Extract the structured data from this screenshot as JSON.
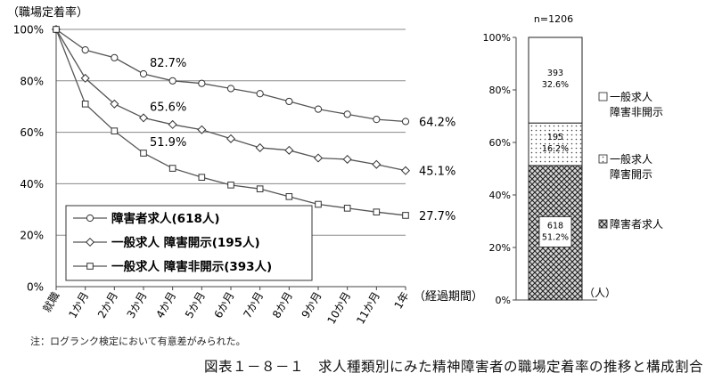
{
  "chart_data": [
    {
      "type": "line",
      "ylabel": "（職場定着率）",
      "xlabel": "（経過期間）",
      "categories": [
        "就職",
        "1か月",
        "2か月",
        "3か月",
        "4か月",
        "5か月",
        "6か月",
        "7か月",
        "8か月",
        "9か月",
        "10か月",
        "11か月",
        "1年"
      ],
      "ylim": [
        0,
        100
      ],
      "yticks": [
        "0%",
        "20%",
        "40%",
        "60%",
        "80%",
        "100%"
      ],
      "grid": true,
      "legend_position": "bottom-left",
      "series": [
        {
          "name": "障害者求人(618人)",
          "marker": "circle",
          "values": [
            100,
            92,
            89,
            82.7,
            80,
            79,
            77,
            75,
            72,
            69,
            67,
            65,
            64.2
          ]
        },
        {
          "name": "一般求人 障害開示(195人)",
          "marker": "diamond",
          "values": [
            100,
            81,
            71,
            65.6,
            63,
            61,
            57.5,
            54,
            53,
            50,
            49.5,
            47.5,
            45.1
          ]
        },
        {
          "name": "一般求人 障害非開示(393人)",
          "marker": "square",
          "values": [
            100,
            71,
            60.5,
            51.9,
            46,
            42.5,
            39.5,
            38,
            35,
            32,
            30.5,
            29,
            27.7
          ]
        }
      ],
      "annotations": [
        {
          "series": 0,
          "index": 3,
          "text": "82.7%"
        },
        {
          "series": 1,
          "index": 3,
          "text": "65.6%"
        },
        {
          "series": 2,
          "index": 3,
          "text": "51.9%"
        },
        {
          "series": 0,
          "index": 12,
          "text": "64.2%"
        },
        {
          "series": 1,
          "index": 12,
          "text": "45.1%"
        },
        {
          "series": 2,
          "index": 12,
          "text": "27.7%"
        }
      ]
    },
    {
      "type": "bar",
      "stacked": true,
      "title": "n=1206",
      "unit": "（人）",
      "ylim": [
        0,
        100
      ],
      "yticks": [
        "0%",
        "20%",
        "40%",
        "60%",
        "80%",
        "100%"
      ],
      "segments": [
        {
          "name": "障害者求人",
          "count": "618",
          "pct": "51.2%",
          "value": 51.2,
          "pattern": "crosshatch"
        },
        {
          "name": "一般求人 障害開示",
          "name_lines": [
            "一般求人",
            "障害開示"
          ],
          "count": "195",
          "pct": "16.2%",
          "value": 16.2,
          "pattern": "dots"
        },
        {
          "name": "一般求人 障害非開示",
          "name_lines": [
            "一般求人",
            "障害非開示"
          ],
          "count": "393",
          "pct": "32.6%",
          "value": 32.6,
          "pattern": "plain"
        }
      ]
    }
  ],
  "note": "注：ログランク検定において有意差がみられた。",
  "caption": "図表１－８－１　求人種類別にみた精神障害者の職場定着率の推移と構成割合",
  "colors": {
    "line": "#555555",
    "grid": "#8a8a8a",
    "text": "#111111"
  }
}
